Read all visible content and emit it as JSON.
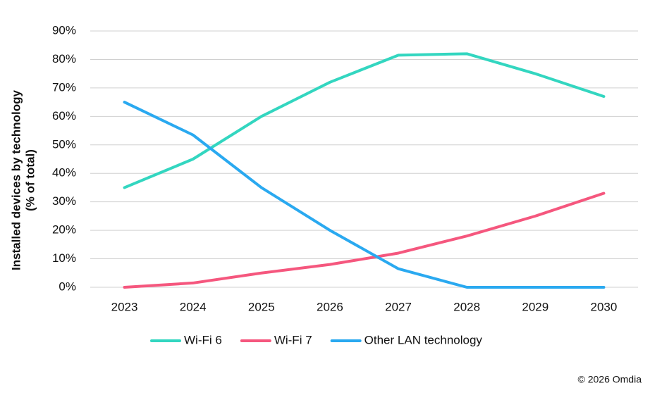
{
  "chart_data": {
    "type": "line",
    "ylabel": [
      "Installed devices by technology",
      "(% of total)"
    ],
    "categories": [
      "2023",
      "2024",
      "2025",
      "2026",
      "2027",
      "2028",
      "2029",
      "2030"
    ],
    "series": [
      {
        "name": "Wi-Fi 6",
        "color": "#33d6c0",
        "values": [
          35,
          45,
          60,
          72,
          81.5,
          82,
          75,
          67
        ]
      },
      {
        "name": "Wi-Fi 7",
        "color": "#f5577e",
        "values": [
          0,
          1.5,
          5,
          8,
          12,
          18,
          25,
          33
        ]
      },
      {
        "name": "Other LAN technology",
        "color": "#2aa9f0",
        "values": [
          65,
          53.5,
          35,
          20,
          6.5,
          0,
          0,
          0
        ]
      }
    ],
    "ylim": [
      0,
      90
    ],
    "yticks": [
      {
        "value": 0,
        "label": "0%"
      },
      {
        "value": 10,
        "label": "10%"
      },
      {
        "value": 20,
        "label": "20%"
      },
      {
        "value": 30,
        "label": "30%"
      },
      {
        "value": 40,
        "label": "40%"
      },
      {
        "value": 50,
        "label": "50%"
      },
      {
        "value": 60,
        "label": "60%"
      },
      {
        "value": 70,
        "label": "70%"
      },
      {
        "value": 80,
        "label": "80%"
      },
      {
        "value": 90,
        "label": "90%"
      }
    ],
    "grid": true,
    "legend": "bottom",
    "source": "© 2026 Omdia"
  }
}
